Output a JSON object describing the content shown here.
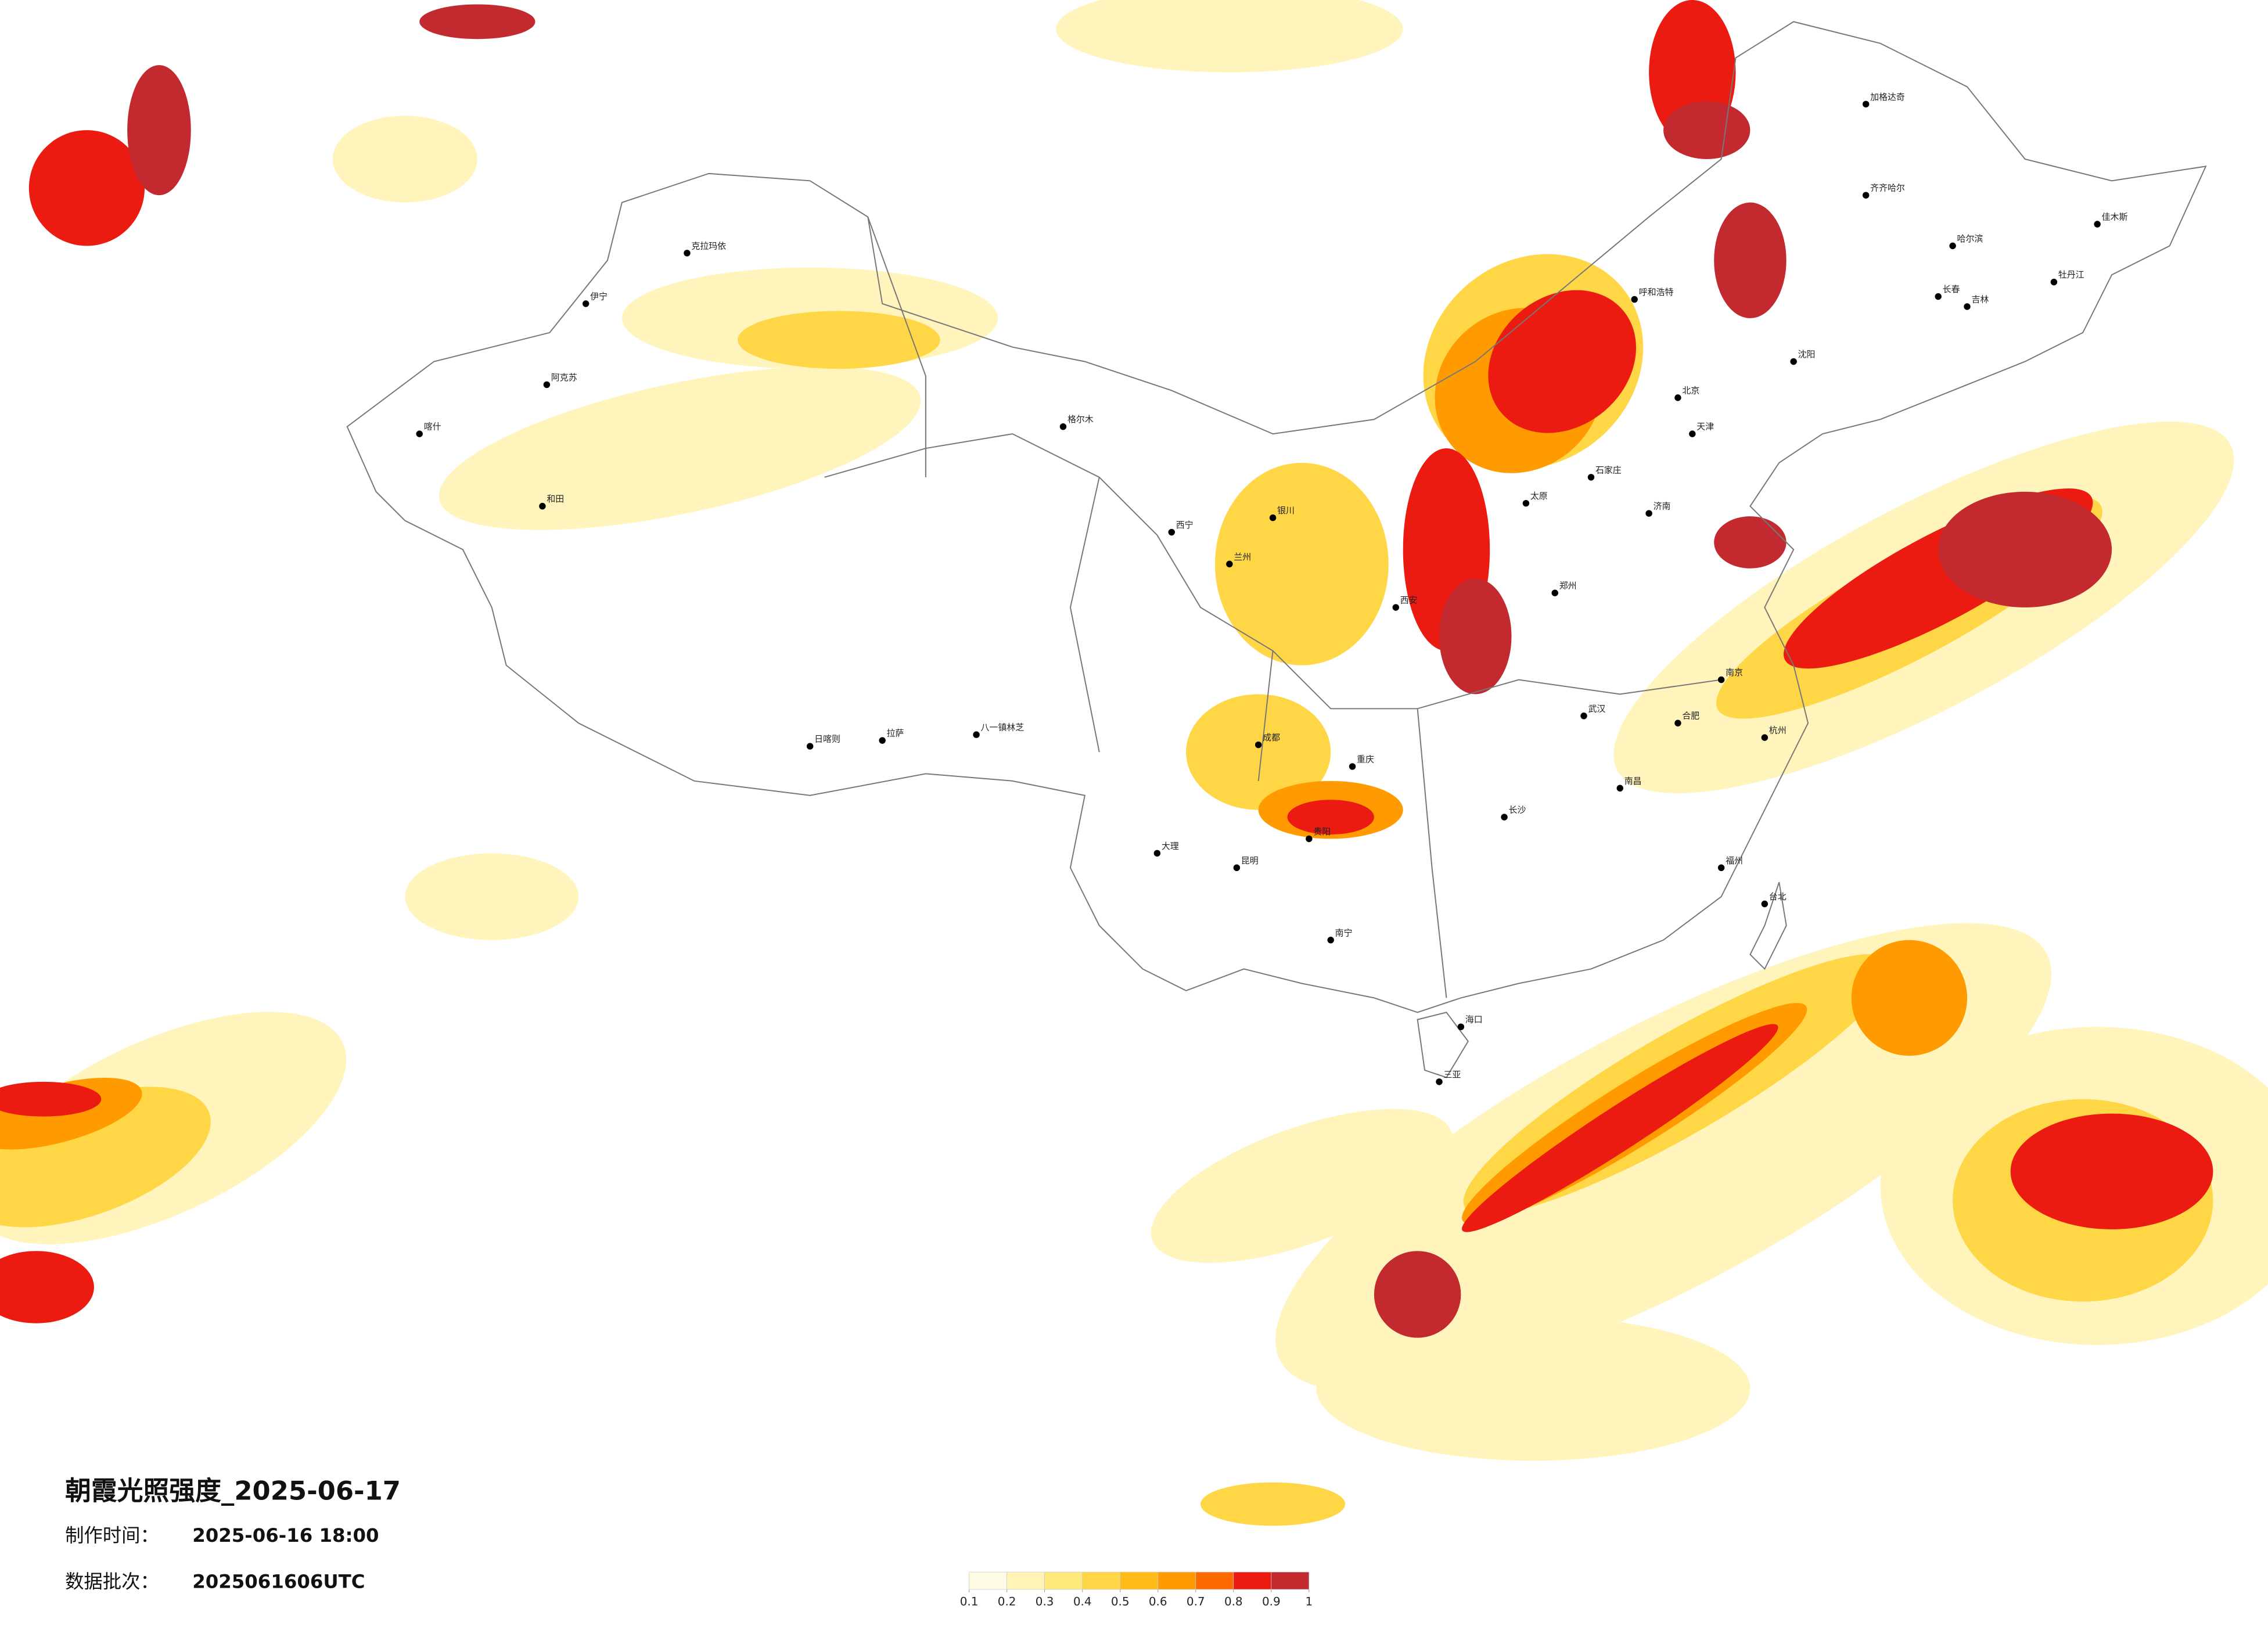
{
  "title": "朝霞光照强度_2025-06-17",
  "production_time": {
    "label": "制作时间：",
    "value": "2025-06-16 18:00"
  },
  "data_batch": {
    "label": "数据批次：",
    "value": "2025061606UTC"
  },
  "legend": {
    "ticks": [
      0.1,
      0.2,
      0.3,
      0.4,
      0.5,
      0.6,
      0.7,
      0.8,
      0.9,
      1
    ],
    "colors": [
      "#fffbe3",
      "#fff3b5",
      "#ffe97a",
      "#ffd646",
      "#ffbc18",
      "#ff9a00",
      "#ff6a00",
      "#ec1b12",
      "#c22a30"
    ]
  },
  "cities": [
    "克拉玛依",
    "伊宁",
    "阿克苏",
    "喀什",
    "和田",
    "格尔木",
    "拉萨",
    "日喀则",
    "八一镇林芝",
    "西宁",
    "兰州",
    "银川",
    "呼和浩特",
    "石家庄",
    "太原",
    "郑州",
    "西安",
    "成都",
    "重庆",
    "贵阳",
    "昆明",
    "大理",
    "南宁",
    "海口",
    "三亚",
    "长沙",
    "武汉",
    "南昌",
    "合肥",
    "南京",
    "杭州",
    "福州",
    "台北",
    "北京",
    "天津",
    "济南",
    "沈阳",
    "长春",
    "吉林",
    "齐齐哈尔",
    "哈尔滨",
    "牡丹江",
    "佳木斯",
    "加格达奇"
  ]
}
